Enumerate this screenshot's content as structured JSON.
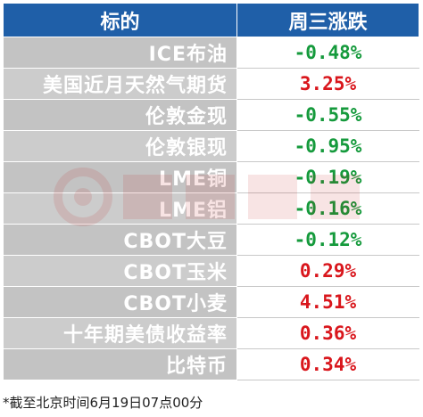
{
  "header": {
    "col1": "标的",
    "col2": "周三涨跌"
  },
  "rows": [
    {
      "name": "ICE布油",
      "value": "-0.48%",
      "direction": "down"
    },
    {
      "name": "美国近月天然气期货",
      "value": "3.25%",
      "direction": "up"
    },
    {
      "name": "伦敦金现",
      "value": "-0.55%",
      "direction": "down"
    },
    {
      "name": "伦敦银现",
      "value": "-0.95%",
      "direction": "down"
    },
    {
      "name": "LME铜",
      "value": "-0.19%",
      "direction": "down"
    },
    {
      "name": "LME铝",
      "value": "-0.16%",
      "direction": "down"
    },
    {
      "name": "CBOT大豆",
      "value": "-0.12%",
      "direction": "down"
    },
    {
      "name": "CBOT玉米",
      "value": "0.29%",
      "direction": "up"
    },
    {
      "name": "CBOT小麦",
      "value": "4.51%",
      "direction": "up"
    },
    {
      "name": "十年期美债收益率",
      "value": "0.36%",
      "direction": "up"
    },
    {
      "name": "比特币",
      "value": "0.34%",
      "direction": "up"
    }
  ],
  "footnote": "*截至北京时间6月19日07点00分",
  "colors": {
    "header_bg": "#1f5fa8",
    "name_bg": "#d0d0d0",
    "up": "#d9161c",
    "down": "#159a3c"
  }
}
